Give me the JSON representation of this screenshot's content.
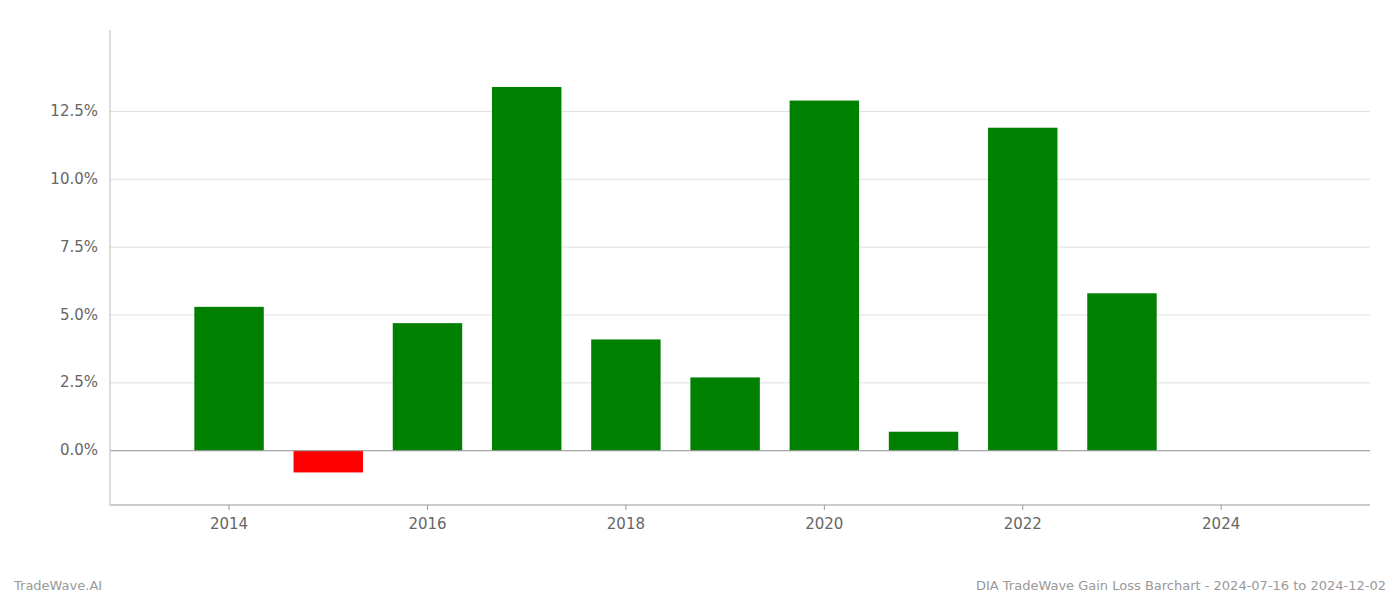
{
  "chart_data": {
    "type": "bar",
    "x": [
      2014,
      2015,
      2016,
      2017,
      2018,
      2019,
      2020,
      2021,
      2022,
      2023
    ],
    "values": [
      0.053,
      -0.008,
      0.047,
      0.134,
      0.041,
      0.027,
      0.129,
      0.007,
      0.119,
      0.058
    ],
    "colors": [
      "#008000",
      "#ff0000",
      "#008000",
      "#008000",
      "#008000",
      "#008000",
      "#008000",
      "#008000",
      "#008000",
      "#008000"
    ],
    "xlim": [
      2012.8,
      2025.5
    ],
    "xticks": [
      2014,
      2016,
      2018,
      2020,
      2022,
      2024
    ],
    "ylim": [
      -0.02,
      0.155
    ],
    "yticks": [
      {
        "value": 0.0,
        "label": "0.0%"
      },
      {
        "value": 0.025,
        "label": "2.5%"
      },
      {
        "value": 0.05,
        "label": "5.0%"
      },
      {
        "value": 0.075,
        "label": "7.5%"
      },
      {
        "value": 0.1,
        "label": "10.0%"
      },
      {
        "value": 0.125,
        "label": "12.5%"
      }
    ],
    "grid": true,
    "annotations": [
      "TradeWave.AI",
      "DIA TradeWave Gain Loss Barchart - 2024-07-16 to 2024-12-02"
    ]
  }
}
